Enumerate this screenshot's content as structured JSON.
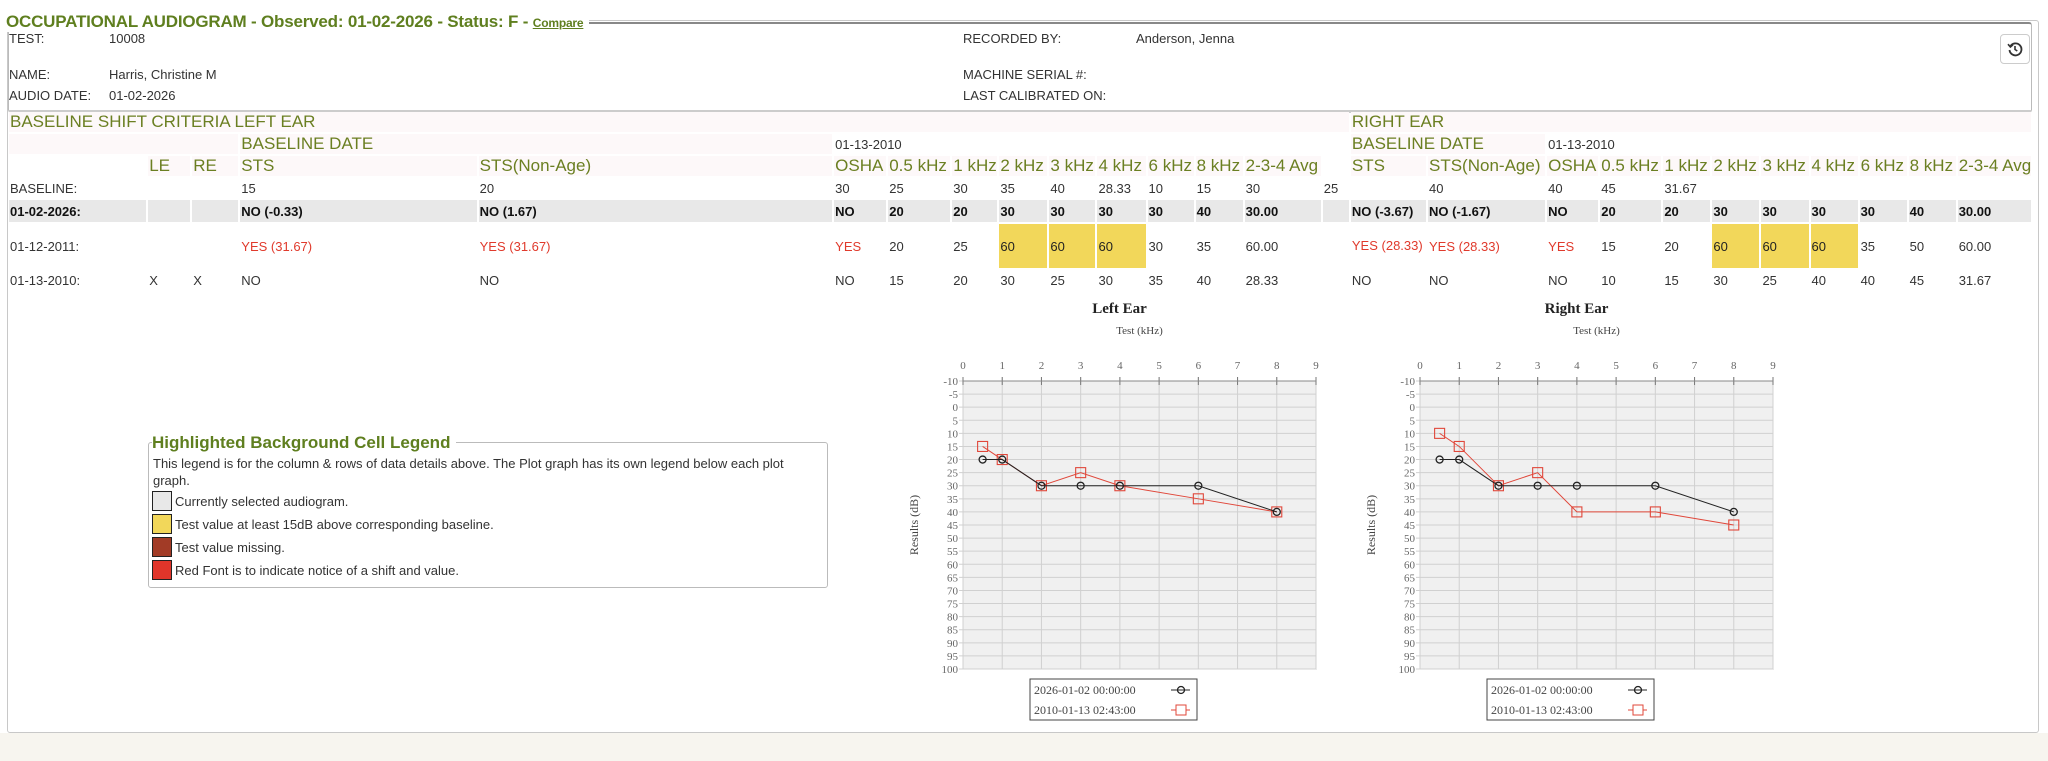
{
  "header": {
    "title": "OCCUPATIONAL AUDIOGRAM - Observed: 01-02-2026 - Status: F -",
    "compare_link": "Compare",
    "test_label": "TEST:",
    "test_value": "10008",
    "name_label": "NAME:",
    "name_value": "Harris, Christine M",
    "audio_date_label": "AUDIO DATE:",
    "audio_date_value": "01-02-2026",
    "recorded_by_label": "RECORDED BY:",
    "recorded_by_value": "Anderson, Jenna",
    "machine_serial_label": "MACHINE SERIAL #:",
    "last_calibrated_label": "LAST CALIBRATED ON:",
    "restore_icon": "history-icon"
  },
  "criteria": {
    "left_title": "BASELINE SHIFT CRITERIA LEFT EAR",
    "right_title": "RIGHT EAR",
    "baseline_date_label": "BASELINE DATE",
    "left_baseline_date": "01-13-2010",
    "right_baseline_date": "01-13-2010",
    "columns": [
      "",
      "LE",
      "RE",
      "STS",
      "STS(Non-Age)",
      "OSHA",
      "0.5 kHz",
      "1 kHz",
      "2 kHz",
      "3 kHz",
      "4 kHz",
      "6 kHz",
      "8 kHz",
      "2-3-4 Avg",
      "",
      "STS",
      "STS(Non-Age)",
      "OSHA",
      "0.5 kHz",
      "1 kHz",
      "2 kHz",
      "3 kHz",
      "4 kHz",
      "6 kHz",
      "8 kHz",
      "2-3-4 Avg"
    ],
    "rows": [
      {
        "type": "baseline",
        "cells": [
          "BASELINE:",
          "",
          "",
          "15",
          "20",
          "30",
          "25",
          "30",
          "35",
          "40",
          "28.33",
          "10",
          "15",
          "30",
          "25",
          "",
          "40",
          "40",
          "45",
          "31.67",
          "",
          "",
          "",
          "",
          "",
          ""
        ]
      },
      {
        "type": "selected",
        "cells": [
          "01-02-2026:",
          "",
          "",
          "NO (-0.33)",
          "NO (1.67)",
          "NO",
          "20",
          "20",
          "30",
          "30",
          "30",
          "30",
          "40",
          "30.00",
          "",
          "NO (-3.67)",
          "NO (-1.67)",
          "NO",
          "20",
          "20",
          "30",
          "30",
          "30",
          "30",
          "40",
          "30.00"
        ]
      },
      {
        "type": "r2011",
        "cells": [
          "01-12-2011:",
          "",
          "",
          "YES (31.67)",
          "YES (31.67)",
          "YES",
          "20",
          "25",
          "60",
          "60",
          "60",
          "30",
          "35",
          "60.00",
          "",
          "YES (28.33)",
          "YES (28.33)",
          "YES",
          "15",
          "20",
          "60",
          "60",
          "60",
          "35",
          "50",
          "60.00"
        ],
        "red": [
          3,
          4,
          5,
          15,
          16,
          17
        ],
        "highlight": [
          8,
          9,
          10,
          20,
          21,
          22
        ]
      },
      {
        "type": "normal",
        "cells": [
          "01-13-2010:",
          "X",
          "X",
          "NO",
          "NO",
          "NO",
          "15",
          "20",
          "30",
          "25",
          "30",
          "35",
          "40",
          "28.33",
          "",
          "NO",
          "NO",
          "NO",
          "10",
          "15",
          "30",
          "25",
          "40",
          "40",
          "45",
          "31.67"
        ]
      }
    ]
  },
  "legend": {
    "title": "Highlighted Background Cell Legend",
    "description": "This legend is for the column & rows of data details above. The Plot graph has its own legend below each plot graph.",
    "items": [
      {
        "color": "#e8e8e8",
        "label": "Currently selected audiogram."
      },
      {
        "color": "#f2d75a",
        "label": "Test value at least 15dB above corresponding baseline."
      },
      {
        "color": "#a23b26",
        "label": "Test value missing."
      },
      {
        "color": "#e0352a",
        "label": "Red Font is to indicate notice of a shift and value."
      }
    ]
  },
  "chart_data": [
    {
      "type": "line",
      "title": "Left Ear",
      "xlabel": "Test (kHz)",
      "ylabel": "Results (dB)",
      "xlim": [
        0,
        9
      ],
      "ylim": [
        -10,
        100
      ],
      "y_inverted": true,
      "grid": true,
      "x_axis_position": "top",
      "legend": "bottom",
      "xticks": [
        0,
        1,
        2,
        3,
        4,
        5,
        6,
        7,
        8,
        9
      ],
      "yticks": [
        -10,
        -5,
        0,
        5,
        10,
        15,
        20,
        25,
        30,
        35,
        40,
        45,
        50,
        55,
        60,
        65,
        70,
        75,
        80,
        85,
        90,
        95,
        100
      ],
      "x": [
        0.5,
        1,
        2,
        3,
        4,
        6,
        8
      ],
      "series": [
        {
          "name": "2026-01-02 00:00:00",
          "color": "#222222",
          "marker": "circle",
          "values": [
            20,
            20,
            30,
            30,
            30,
            30,
            40
          ]
        },
        {
          "name": "2010-01-13 02:43:00",
          "color": "#e0473a",
          "marker": "square",
          "values": [
            15,
            20,
            30,
            25,
            30,
            35,
            40
          ]
        }
      ]
    },
    {
      "type": "line",
      "title": "Right Ear",
      "xlabel": "Test (kHz)",
      "ylabel": "Results (dB)",
      "xlim": [
        0,
        9
      ],
      "ylim": [
        -10,
        100
      ],
      "y_inverted": true,
      "grid": true,
      "x_axis_position": "top",
      "legend": "bottom",
      "xticks": [
        0,
        1,
        2,
        3,
        4,
        5,
        6,
        7,
        8,
        9
      ],
      "yticks": [
        -10,
        -5,
        0,
        5,
        10,
        15,
        20,
        25,
        30,
        35,
        40,
        45,
        50,
        55,
        60,
        65,
        70,
        75,
        80,
        85,
        90,
        95,
        100
      ],
      "x": [
        0.5,
        1,
        2,
        3,
        4,
        6,
        8
      ],
      "series": [
        {
          "name": "2026-01-02 00:00:00",
          "color": "#222222",
          "marker": "circle",
          "values": [
            20,
            20,
            30,
            30,
            30,
            30,
            40
          ]
        },
        {
          "name": "2010-01-13 02:43:00",
          "color": "#e0473a",
          "marker": "square",
          "values": [
            10,
            15,
            30,
            25,
            40,
            40,
            45
          ]
        }
      ]
    }
  ]
}
